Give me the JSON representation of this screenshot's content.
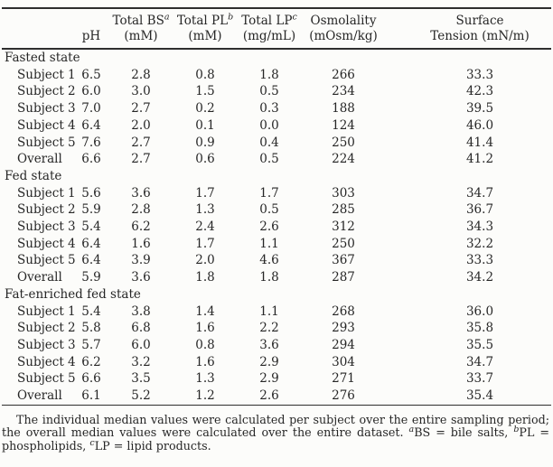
{
  "table": {
    "columns": [
      {
        "id": "rowlabel",
        "line1": "",
        "line2": ""
      },
      {
        "id": "ph",
        "line1": "",
        "line2": "pH"
      },
      {
        "id": "bs",
        "line1": "Total BS",
        "sup": "a",
        "line2": "(mM)"
      },
      {
        "id": "pl",
        "line1": "Total PL",
        "sup": "b",
        "line2": "(mM)"
      },
      {
        "id": "lp",
        "line1": "Total LP",
        "sup": "c",
        "line2": "(mg/mL)"
      },
      {
        "id": "osm",
        "line1": "Osmolality",
        "line2": "(mOsm/kg)"
      },
      {
        "id": "st",
        "line1": "Surface",
        "line2": "Tension (mN/m)"
      }
    ],
    "groups": [
      {
        "label": "Fasted state",
        "rows": [
          {
            "label": "Subject 1",
            "values": [
              "6.5",
              "2.8",
              "0.8",
              "1.8",
              "266",
              "33.3"
            ]
          },
          {
            "label": "Subject 2",
            "values": [
              "6.0",
              "3.0",
              "1.5",
              "0.5",
              "234",
              "42.3"
            ]
          },
          {
            "label": "Subject 3",
            "values": [
              "7.0",
              "2.7",
              "0.2",
              "0.3",
              "188",
              "39.5"
            ]
          },
          {
            "label": "Subject 4",
            "values": [
              "6.4",
              "2.0",
              "0.1",
              "0.0",
              "124",
              "46.0"
            ]
          },
          {
            "label": "Subject 5",
            "values": [
              "7.6",
              "2.7",
              "0.9",
              "0.4",
              "250",
              "41.4"
            ]
          },
          {
            "label": "Overall",
            "values": [
              "6.6",
              "2.7",
              "0.6",
              "0.5",
              "224",
              "41.2"
            ]
          }
        ]
      },
      {
        "label": "Fed state",
        "rows": [
          {
            "label": "Subject 1",
            "values": [
              "5.6",
              "3.6",
              "1.7",
              "1.7",
              "303",
              "34.7"
            ]
          },
          {
            "label": "Subject 2",
            "values": [
              "5.9",
              "2.8",
              "1.3",
              "0.5",
              "285",
              "36.7"
            ]
          },
          {
            "label": "Subject 3",
            "values": [
              "5.4",
              "6.2",
              "2.4",
              "2.6",
              "312",
              "34.3"
            ]
          },
          {
            "label": "Subject 4",
            "values": [
              "6.4",
              "1.6",
              "1.7",
              "1.1",
              "250",
              "32.2"
            ]
          },
          {
            "label": "Subject 5",
            "values": [
              "6.4",
              "3.9",
              "2.0",
              "4.6",
              "367",
              "33.3"
            ]
          },
          {
            "label": "Overall",
            "values": [
              "5.9",
              "3.6",
              "1.8",
              "1.8",
              "287",
              "34.2"
            ]
          }
        ]
      },
      {
        "label": "Fat-enriched fed state",
        "rows": [
          {
            "label": "Subject 1",
            "values": [
              "5.4",
              "3.8",
              "1.4",
              "1.1",
              "268",
              "36.0"
            ]
          },
          {
            "label": "Subject 2",
            "values": [
              "5.8",
              "6.8",
              "1.6",
              "2.2",
              "293",
              "35.8"
            ]
          },
          {
            "label": "Subject 3",
            "values": [
              "5.7",
              "6.0",
              "0.8",
              "3.6",
              "294",
              "35.5"
            ]
          },
          {
            "label": "Subject 4",
            "values": [
              "6.2",
              "3.2",
              "1.6",
              "2.9",
              "304",
              "34.7"
            ]
          },
          {
            "label": "Subject 5",
            "values": [
              "6.6",
              "3.5",
              "1.3",
              "2.9",
              "271",
              "33.7"
            ]
          },
          {
            "label": "Overall",
            "values": [
              "6.1",
              "5.2",
              "1.2",
              "2.6",
              "276",
              "35.4"
            ]
          }
        ]
      }
    ]
  },
  "footnote": {
    "parts": [
      {
        "text": "The individual median values were calculated per subject over the entire sampling period; the overall median values were calculated over the entire dataset. "
      },
      {
        "sup": "a",
        "text": "BS = bile salts, "
      },
      {
        "sup": "b",
        "text": "PL = phospholipids, "
      },
      {
        "sup": "c",
        "text": "LP = lipid products."
      }
    ]
  }
}
